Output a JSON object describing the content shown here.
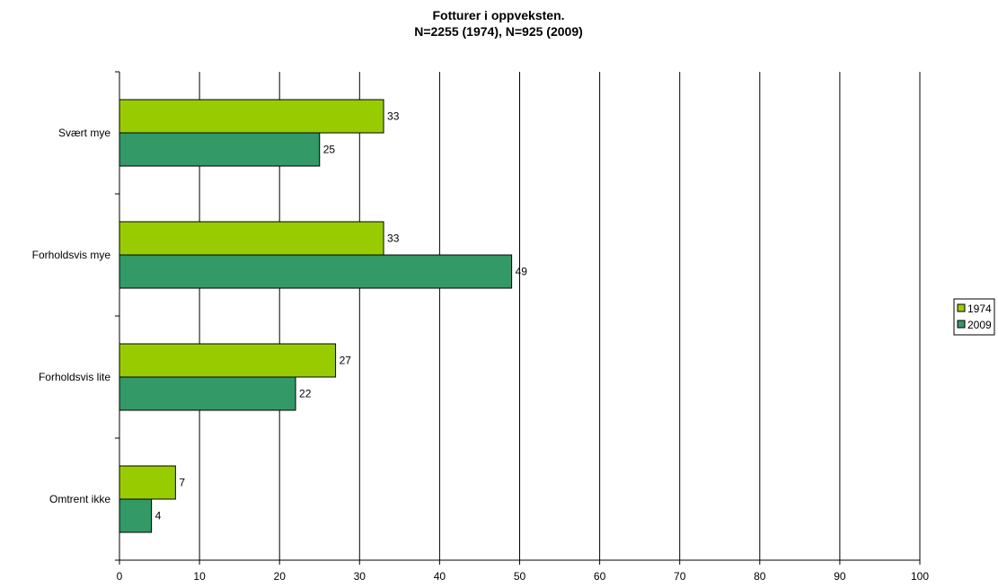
{
  "chart_data": {
    "type": "bar",
    "orientation": "horizontal",
    "title": [
      "Fotturer i oppveksten.",
      "N=2255 (1974), N=925 (2009)"
    ],
    "categories": [
      "Svært mye",
      "Forholdsvis mye",
      "Forholdsvis lite",
      "Omtrent ikke"
    ],
    "series": [
      {
        "name": "1974",
        "color": "#99cc00",
        "values": [
          33,
          33,
          27,
          7
        ]
      },
      {
        "name": "2009",
        "color": "#339966",
        "values": [
          25,
          49,
          22,
          4
        ]
      }
    ],
    "xlim": [
      0,
      100
    ],
    "xticks": [
      "0",
      "10",
      "20",
      "30",
      "40",
      "50",
      "60",
      "70",
      "80",
      "90",
      "100"
    ],
    "grid": "vertical",
    "legend": "right"
  }
}
